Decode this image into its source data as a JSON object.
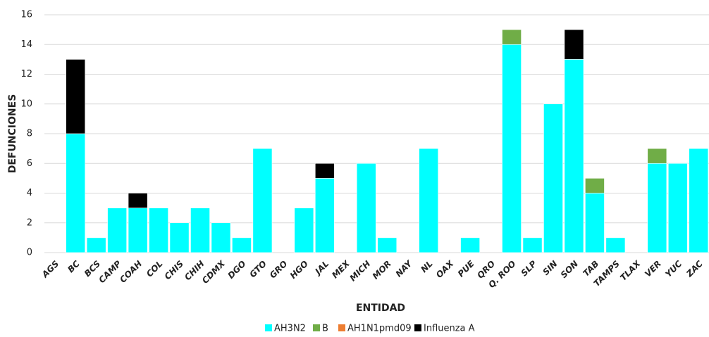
{
  "chart_data": {
    "type": "stacked_bar",
    "x_label": "ENTIDAD",
    "y_label": "DEFUNCIONES",
    "categories": [
      "AGS",
      "BC",
      "BCS",
      "CAMP",
      "COAH",
      "COL",
      "CHIS",
      "CHIH",
      "CDMX",
      "DGO",
      "GTO",
      "GRO",
      "HGO",
      "JAL",
      "MEX",
      "MICH",
      "MOR",
      "NAY",
      "NL",
      "OAX",
      "PUE",
      "QRO",
      "Q. ROO",
      "SLP",
      "SIN",
      "SON",
      "TAB",
      "TAMPS",
      "TLAX",
      "VER",
      "YUC",
      "ZAC"
    ],
    "series": [
      {
        "name": "AH3N2",
        "color": "#00ffff",
        "values": [
          0,
          8,
          1,
          3,
          3,
          3,
          2,
          3,
          2,
          1,
          7,
          0,
          3,
          5,
          0,
          6,
          1,
          0,
          7,
          0,
          1,
          0,
          14,
          1,
          10,
          13,
          4,
          1,
          0,
          6,
          6,
          7
        ]
      },
      {
        "name": "B",
        "color": "#70ad47",
        "values": [
          0,
          0,
          0,
          0,
          0,
          0,
          0,
          0,
          0,
          0,
          0,
          0,
          0,
          0,
          0,
          0,
          0,
          0,
          0,
          0,
          0,
          0,
          1,
          0,
          0,
          0,
          1,
          0,
          0,
          1,
          0,
          0
        ]
      },
      {
        "name": "AH1N1pmd09",
        "color": "#ed7d31",
        "values": [
          0,
          0,
          0,
          0,
          0,
          0,
          0,
          0,
          0,
          0,
          0,
          0,
          0,
          0,
          0,
          0,
          0,
          0,
          0,
          0,
          0,
          0,
          0,
          0,
          0,
          0,
          0,
          0,
          0,
          0,
          0,
          0
        ]
      },
      {
        "name": "Influenza A",
        "color": "#000000",
        "values": [
          0,
          5,
          0,
          0,
          1,
          0,
          0,
          0,
          0,
          0,
          0,
          0,
          0,
          1,
          0,
          0,
          0,
          0,
          0,
          0,
          0,
          0,
          0,
          0,
          0,
          2,
          0,
          0,
          0,
          0,
          0,
          0
        ]
      }
    ],
    "ylim": [
      0,
      16
    ],
    "yticks": [
      0,
      2,
      4,
      6,
      8,
      10,
      12,
      14,
      16
    ],
    "grid": true
  }
}
